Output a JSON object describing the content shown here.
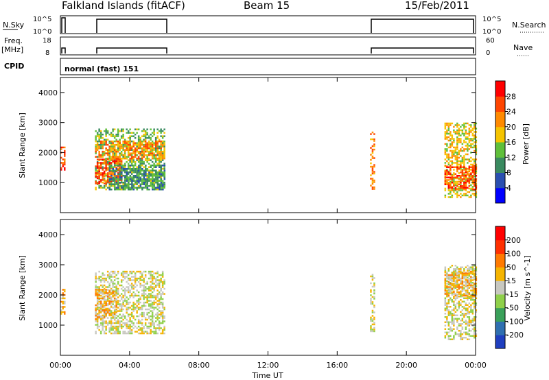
{
  "header": {
    "station": "Falkland Islands (fitACF)",
    "beam": "Beam 15",
    "date": "15/Feb/2011"
  },
  "strip_panels": {
    "nsky": {
      "label": "N.Sky",
      "ticks": [
        "10^5",
        "10^0"
      ],
      "right_label": "N.Search",
      "right_ticks": [
        "10^5",
        "10^0"
      ]
    },
    "freq": {
      "label_line1": "Freq.",
      "label_line2": "[MHz]",
      "ticks": [
        "18",
        "8"
      ],
      "right_label": "Nave",
      "right_ticks": [
        "60",
        "0"
      ]
    },
    "cpid": {
      "label": "CPID",
      "text": "normal (fast) 151"
    }
  },
  "chart_data": [
    {
      "type": "heatmap",
      "name": "power",
      "ylabel": "Slant Range [km]",
      "xlabel": "Time UT",
      "ylim": [
        0,
        4500
      ],
      "xlim": [
        0,
        24
      ],
      "yticks": [
        "1000",
        "2000",
        "3000",
        "4000"
      ],
      "xticks": [
        "00:00",
        "04:00",
        "08:00",
        "12:00",
        "16:00",
        "20:00",
        "00:00"
      ],
      "colorbar": {
        "label": "Power [dB]",
        "ticks": [
          "28",
          "24",
          "20",
          "16",
          "12",
          "8",
          "4"
        ],
        "colors": [
          "#0000ff",
          "#2a4fb0",
          "#3a8a60",
          "#5fbf3a",
          "#f5c400",
          "#ff8a00",
          "#ff4500",
          "#ff0000"
        ]
      },
      "regions": [
        {
          "t0": 0.0,
          "t1": 0.2,
          "r0": 1400,
          "r1": 2200,
          "level": 6
        },
        {
          "t0": 2.0,
          "t1": 6.0,
          "r0": 800,
          "r1": 2800,
          "level": 3
        },
        {
          "t0": 2.0,
          "t1": 6.0,
          "r0": 1800,
          "r1": 2400,
          "level": 5
        },
        {
          "t0": 2.0,
          "t1": 3.5,
          "r0": 1000,
          "r1": 1800,
          "level": 6
        },
        {
          "t0": 2.8,
          "t1": 6.0,
          "r0": 800,
          "r1": 1600,
          "level": 2
        },
        {
          "t0": 17.9,
          "t1": 18.1,
          "r0": 800,
          "r1": 2700,
          "level": 5
        },
        {
          "t0": 22.2,
          "t1": 24.0,
          "r0": 500,
          "r1": 3000,
          "level": 4
        },
        {
          "t0": 22.2,
          "t1": 24.0,
          "r0": 800,
          "r1": 1600,
          "level": 6
        }
      ]
    },
    {
      "type": "heatmap",
      "name": "velocity",
      "ylabel": "Slant Range [km]",
      "xlabel": "Time UT",
      "ylim": [
        0,
        4500
      ],
      "xlim": [
        0,
        24
      ],
      "yticks": [
        "1000",
        "2000",
        "3000",
        "4000"
      ],
      "xticks": [
        "00:00",
        "04:00",
        "08:00",
        "12:00",
        "16:00",
        "20:00",
        "00:00"
      ],
      "colorbar": {
        "label": "Velocity [m s^-1]",
        "ticks": [
          "200",
          "100",
          "50",
          "15",
          "-15",
          "-50",
          "-100",
          "-200"
        ],
        "colors": [
          "#1f3fbf",
          "#2f6fb0",
          "#3aa05a",
          "#8fd04a",
          "#c8c8c0",
          "#f5b400",
          "#ff7a00",
          "#ff3000",
          "#ff0000"
        ]
      },
      "regions": [
        {
          "t0": 0.0,
          "t1": 0.2,
          "r0": 1400,
          "r1": 2200,
          "level": 5
        },
        {
          "t0": 2.0,
          "t1": 6.0,
          "r0": 700,
          "r1": 2800,
          "level": 4
        },
        {
          "t0": 2.0,
          "t1": 3.2,
          "r0": 1200,
          "r1": 2200,
          "level": 5
        },
        {
          "t0": 17.9,
          "t1": 18.1,
          "r0": 800,
          "r1": 2700,
          "level": 4
        },
        {
          "t0": 22.2,
          "t1": 24.0,
          "r0": 500,
          "r1": 3000,
          "level": 4
        },
        {
          "t0": 22.2,
          "t1": 24.0,
          "r0": 2000,
          "r1": 2800,
          "level": 5
        }
      ]
    }
  ]
}
